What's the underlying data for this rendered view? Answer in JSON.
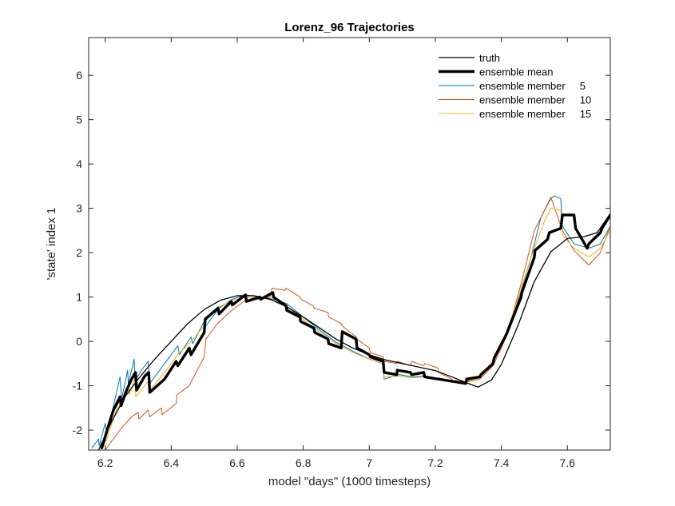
{
  "chart_data": {
    "type": "line",
    "title": "Lorenz_96 Trajectories",
    "xlabel": "model \"days\" (1000 timesteps)",
    "ylabel": "'state' index 1",
    "xlim": [
      6.15,
      7.73
    ],
    "ylim": [
      -2.45,
      6.85
    ],
    "xticks": [
      6.2,
      6.4,
      6.6,
      6.8,
      7,
      7.2,
      7.4,
      7.6
    ],
    "xtick_labels": [
      "6.2",
      "6.4",
      "6.6",
      "6.8",
      "7",
      "7.2",
      "7.4",
      "7.6"
    ],
    "yticks": [
      -2,
      -1,
      0,
      1,
      2,
      3,
      4,
      5,
      6
    ],
    "ytick_labels": [
      "-2",
      "-1",
      "0",
      "1",
      "2",
      "3",
      "4",
      "5",
      "6"
    ],
    "grid": false,
    "legend_position": "top-right",
    "series": [
      {
        "name": "truth",
        "color": "#000000",
        "width": 1.3,
        "x": [
          6.18,
          6.22,
          6.26,
          6.3,
          6.35,
          6.4,
          6.45,
          6.5,
          6.55,
          6.6,
          6.65,
          6.7,
          6.75,
          6.8,
          6.85,
          6.9,
          6.95,
          7.0,
          7.05,
          7.1,
          7.15,
          7.2,
          7.25,
          7.3,
          7.33,
          7.37,
          7.4,
          7.45,
          7.5,
          7.55,
          7.6,
          7.65,
          7.69,
          7.73
        ],
        "y": [
          -2.45,
          -1.8,
          -1.25,
          -0.85,
          -0.4,
          0.0,
          0.4,
          0.72,
          0.93,
          1.03,
          1.03,
          0.95,
          0.78,
          0.55,
          0.3,
          0.05,
          -0.15,
          -0.3,
          -0.42,
          -0.5,
          -0.58,
          -0.66,
          -0.8,
          -0.95,
          -1.03,
          -0.87,
          -0.52,
          0.35,
          1.35,
          2.02,
          2.32,
          2.36,
          2.45,
          2.88
        ]
      },
      {
        "name": "ensemble mean",
        "color": "#000000",
        "width": 3.4,
        "x": [
          6.19,
          6.21,
          6.225,
          6.245,
          6.248,
          6.265,
          6.28,
          6.292,
          6.295,
          6.32,
          6.332,
          6.335,
          6.38,
          6.415,
          6.42,
          6.455,
          6.46,
          6.5,
          6.503,
          6.542,
          6.545,
          6.582,
          6.585,
          6.625,
          6.628,
          6.668,
          6.671,
          6.708,
          6.71,
          6.748,
          6.75,
          6.79,
          6.792,
          6.832,
          6.835,
          6.875,
          6.877,
          6.915,
          6.918,
          6.96,
          6.963,
          7.0,
          7.003,
          7.042,
          7.045,
          7.083,
          7.085,
          7.125,
          7.128,
          7.165,
          7.168,
          7.208,
          7.21,
          7.25,
          7.252,
          7.292,
          7.295,
          7.335,
          7.338,
          7.375,
          7.378,
          7.418,
          7.42,
          7.46,
          7.462,
          7.5,
          7.502,
          7.54,
          7.545,
          7.58,
          7.585,
          7.62,
          7.625,
          7.66,
          7.665,
          7.7,
          7.705,
          7.73
        ],
        "y": [
          -2.4,
          -1.9,
          -1.55,
          -1.25,
          -1.45,
          -1.1,
          -0.85,
          -0.7,
          -1.1,
          -0.78,
          -0.7,
          -1.15,
          -0.85,
          -0.45,
          -0.55,
          -0.15,
          -0.3,
          0.2,
          0.5,
          0.75,
          0.62,
          0.9,
          0.82,
          1.05,
          0.9,
          1.0,
          0.95,
          1.1,
          1.0,
          0.8,
          0.7,
          0.55,
          0.45,
          0.3,
          0.2,
          0.05,
          -0.05,
          -0.15,
          0.22,
          0.05,
          -0.15,
          -0.3,
          -0.35,
          -0.45,
          -0.7,
          -0.75,
          -0.65,
          -0.7,
          -0.75,
          -0.7,
          -0.8,
          -0.85,
          -0.85,
          -0.9,
          -0.9,
          -0.95,
          -0.85,
          -0.8,
          -0.75,
          -0.5,
          -0.38,
          0.2,
          0.25,
          1.0,
          1.1,
          1.9,
          2.05,
          2.3,
          2.45,
          2.55,
          2.85,
          2.85,
          2.55,
          2.1,
          2.2,
          2.45,
          2.55,
          2.85
        ]
      },
      {
        "name": "ensemble member     5",
        "color": "#0072BD",
        "width": 1,
        "x": [
          6.16,
          6.18,
          6.182,
          6.2,
          6.205,
          6.23,
          6.245,
          6.25,
          6.268,
          6.27,
          6.288,
          6.29,
          6.31,
          6.33,
          6.335,
          6.38,
          6.42,
          6.425,
          6.46,
          6.465,
          6.5,
          6.505,
          6.545,
          6.585,
          6.625,
          6.67,
          6.71,
          6.75,
          6.8,
          6.85,
          6.9,
          6.95,
          7.0,
          7.04,
          7.045,
          7.09,
          7.13,
          7.17,
          7.21,
          7.25,
          7.29,
          7.33,
          7.37,
          7.41,
          7.45,
          7.49,
          7.52,
          7.55,
          7.56,
          7.58,
          7.585,
          7.62,
          7.665,
          7.7,
          7.73
        ],
        "y": [
          -2.4,
          -2.2,
          -2.35,
          -1.85,
          -2.1,
          -1.3,
          -0.8,
          -1.3,
          -0.65,
          -0.95,
          -0.4,
          -0.9,
          -0.65,
          -0.45,
          -0.95,
          -0.5,
          -0.1,
          -0.3,
          0.1,
          -0.05,
          0.45,
          0.35,
          0.75,
          0.95,
          1.05,
          1.0,
          0.95,
          0.85,
          0.55,
          0.25,
          -0.02,
          -0.22,
          -0.4,
          -0.5,
          -0.85,
          -0.75,
          -0.8,
          -0.78,
          -0.85,
          -0.88,
          -0.9,
          -0.85,
          -0.55,
          0.05,
          0.9,
          1.9,
          2.8,
          3.22,
          3.28,
          3.22,
          2.6,
          2.2,
          2.1,
          2.2,
          2.6
        ]
      },
      {
        "name": "ensemble member     10",
        "color": "#D95319",
        "width": 1,
        "x": [
          6.2,
          6.25,
          6.28,
          6.3,
          6.302,
          6.33,
          6.335,
          6.37,
          6.373,
          6.415,
          6.418,
          6.455,
          6.458,
          6.5,
          6.505,
          6.54,
          6.58,
          6.62,
          6.66,
          6.7,
          6.705,
          6.745,
          6.748,
          6.79,
          6.793,
          6.83,
          6.833,
          6.875,
          6.877,
          6.915,
          6.918,
          6.96,
          6.963,
          7.0,
          7.003,
          7.042,
          7.045,
          7.083,
          7.085,
          7.125,
          7.128,
          7.165,
          7.168,
          7.208,
          7.21,
          7.25,
          7.252,
          7.29,
          7.335,
          7.375,
          7.415,
          7.46,
          7.5,
          7.54,
          7.55,
          7.585,
          7.62,
          7.665,
          7.7,
          7.73
        ],
        "y": [
          -2.45,
          -1.95,
          -1.7,
          -1.6,
          -1.75,
          -1.55,
          -1.7,
          -1.5,
          -1.65,
          -1.4,
          -1.2,
          -1.0,
          -0.95,
          -0.35,
          0.05,
          0.4,
          0.68,
          0.9,
          0.95,
          1.0,
          1.2,
          1.15,
          1.2,
          1.0,
          0.95,
          0.8,
          0.75,
          0.65,
          0.55,
          0.4,
          0.35,
          0.1,
          0.05,
          -0.15,
          -0.25,
          -0.35,
          -0.45,
          -0.5,
          -0.45,
          -0.55,
          -0.45,
          -0.55,
          -0.5,
          -0.6,
          -0.7,
          -0.85,
          -0.9,
          -0.92,
          -0.85,
          -0.55,
          0.1,
          1.3,
          2.5,
          3.1,
          3.25,
          2.5,
          2.05,
          1.72,
          2.0,
          2.6
        ]
      },
      {
        "name": "ensemble member     15",
        "color": "#EDB120",
        "width": 1,
        "x": [
          6.2,
          6.245,
          6.25,
          6.27,
          6.272,
          6.29,
          6.293,
          6.33,
          6.335,
          6.38,
          6.42,
          6.46,
          6.5,
          6.505,
          6.545,
          6.585,
          6.625,
          6.67,
          6.71,
          6.75,
          6.8,
          6.85,
          6.9,
          6.95,
          7.0,
          7.04,
          7.045,
          7.09,
          7.13,
          7.17,
          7.21,
          7.25,
          7.29,
          7.33,
          7.37,
          7.41,
          7.45,
          7.49,
          7.53,
          7.55,
          7.58,
          7.585,
          7.62,
          7.665,
          7.7,
          7.73
        ],
        "y": [
          -2.3,
          -1.3,
          -1.45,
          -1.05,
          -1.2,
          -0.85,
          -1.25,
          -0.9,
          -1.1,
          -0.7,
          -0.3,
          0.0,
          0.35,
          0.55,
          0.78,
          0.92,
          1.0,
          0.98,
          0.92,
          0.78,
          0.5,
          0.2,
          -0.05,
          -0.25,
          -0.4,
          -0.5,
          -0.8,
          -0.78,
          -0.82,
          -0.8,
          -0.85,
          -0.88,
          -0.9,
          -0.85,
          -0.5,
          0.1,
          0.95,
          1.9,
          2.7,
          3.0,
          2.95,
          2.4,
          2.1,
          1.9,
          2.1,
          2.5
        ]
      }
    ]
  }
}
